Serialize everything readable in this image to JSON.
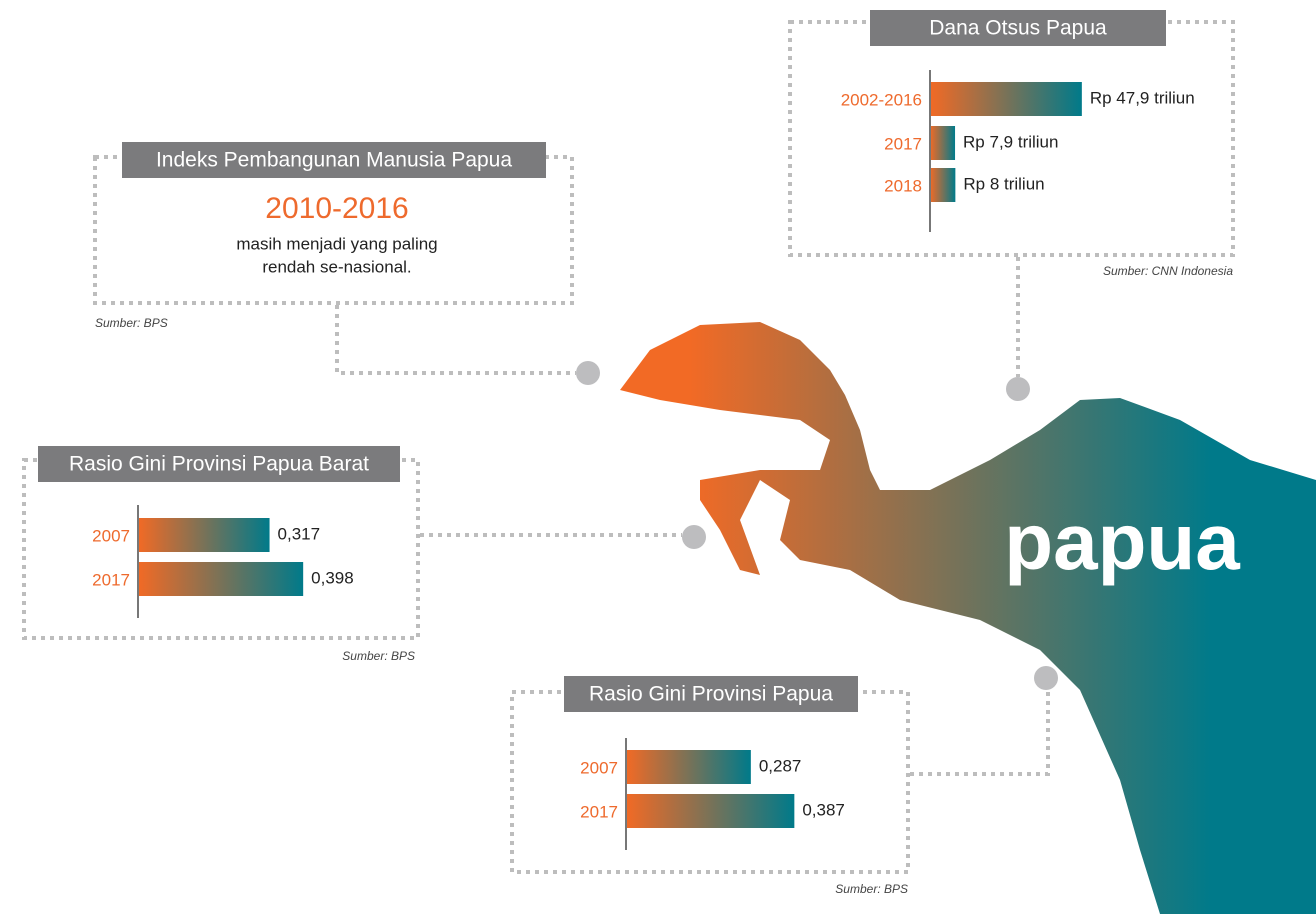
{
  "chart_data": [
    {
      "type": "bar",
      "title": "Dana Otsus Papua",
      "categories": [
        "2002-2016",
        "2017",
        "2018"
      ],
      "values": [
        47.9,
        7.9,
        8
      ],
      "value_labels": [
        "Rp 47,9 triliun",
        "Rp 7,9 triliun",
        "Rp 8 triliun"
      ],
      "colors": [
        "#f26a25",
        "#007a8a"
      ],
      "source": "Sumber: CNN Indonesia"
    },
    {
      "type": "bar",
      "title": "Rasio Gini Provinsi Papua Barat",
      "categories": [
        "2007",
        "2017"
      ],
      "values": [
        0.317,
        0.398
      ],
      "value_labels": [
        "0,317",
        "0,398"
      ],
      "colors": [
        "#f26a25",
        "#007a8a"
      ],
      "source": "Sumber: BPS"
    },
    {
      "type": "bar",
      "title": "Rasio Gini Provinsi Papua",
      "categories": [
        "2007",
        "2017"
      ],
      "values": [
        0.287,
        0.387
      ],
      "value_labels": [
        "0,287",
        "0,387"
      ],
      "colors": [
        "#f26a25",
        "#007a8a"
      ],
      "source": "Sumber: BPS"
    }
  ],
  "ipm": {
    "title": "Indeks Pembangunan Manusia Papua",
    "highlight": "2010-2016",
    "lines": [
      "masih menjadi yang paling",
      "rendah se-nasional."
    ],
    "source": "Sumber: BPS"
  },
  "map_label": "papua"
}
